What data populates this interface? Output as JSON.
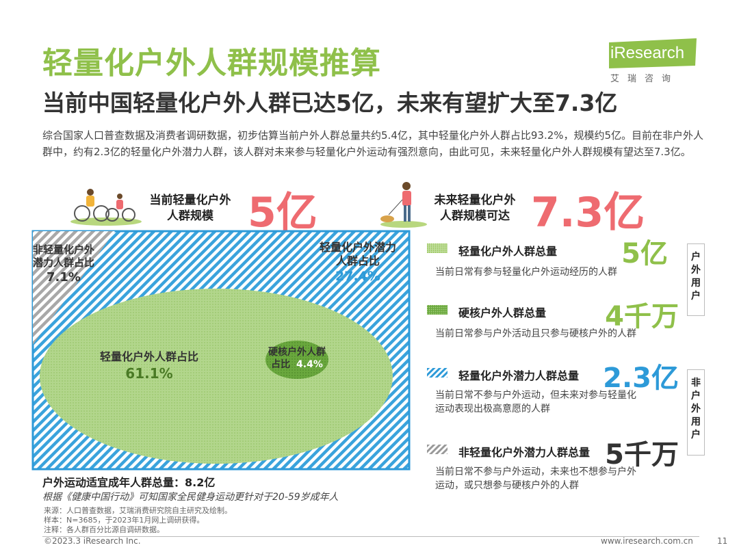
{
  "header": {
    "title": "轻量化户外人群规模推算",
    "subtitle": "当前中国轻量化户外人群已达5亿，未来有望扩大至7.3亿",
    "intro": "综合国家人口普查数据及消费者调研数据，初步估算当前户外人群总量共约5.4亿，其中轻量化户外人群占比93.2%，规模约5亿。目前在非户外人群中，约有2.3亿的轻量化户外潜力人群，该人群对未来参与轻量化户外运动有强烈意向，由此可见，未来轻量化户外人群规模有望达至7.3亿。",
    "logo_text": "iResearch",
    "logo_cn": "艾瑞咨询"
  },
  "stats": {
    "current_label_1": "当前轻量化户外",
    "current_label_2": "人群规模",
    "current_value": "5亿",
    "future_label_1": "未来轻量化户外",
    "future_label_2": "人群规模可达",
    "future_value": "7.3亿"
  },
  "diagram": {
    "non_light_1": "非轻量化户外",
    "non_light_2": "潜力人群占比",
    "non_light_pct": "7.1%",
    "potential_1": "轻量化户外潜力",
    "potential_2": "人群占比",
    "potential_pct": "27.4%",
    "light_label": "轻量化户外人群占比",
    "light_pct": "61.1%",
    "hardcore_1": "硬核户外人群",
    "hardcore_2": "占比",
    "hardcore_pct": "4.4%",
    "total_label": "户外运动适宜成年人群总量：8.2亿",
    "basis_note": "根据《健康中国行动》可知国家全民健身运动更针对于20-59岁成年人"
  },
  "legend": [
    {
      "title": "轻量化户外人群总量",
      "value": "5亿",
      "desc": "当前日常有参与轻量化户外运动经历的人群",
      "color": "#8fc04a"
    },
    {
      "title": "硬核户外人群总量",
      "value": "4千万",
      "desc": "当前日常参与户外活动且只参与硬核户外的人群",
      "color": "#8fc04a"
    },
    {
      "title": "轻量化户外潜力人群总量",
      "value": "2.3亿",
      "desc1": "当前日常不参与户外运动，但未来对参与轻量化",
      "desc2": "运动表现出极高意愿的人群",
      "color": "#2d9ad8"
    },
    {
      "title": "非轻量化户外潜力人群总量",
      "value": "5千万",
      "desc1": "当前日常不参与户外运动，未来也不想参与户外",
      "desc2": "运动，或只想参与硬核户外的人群",
      "color": "#333333"
    }
  ],
  "side_labels": {
    "outdoor": [
      "户",
      "外",
      "用",
      "户"
    ],
    "non_outdoor": [
      "非",
      "户",
      "外",
      "用",
      "户"
    ]
  },
  "footer": {
    "source": "来源：人口普查数据，艾瑞消费研究院自主研究及绘制。",
    "sample": "样本：N=3685，于2023年1月网上调研获得。",
    "note": "注释：各人群百分比源自调研数据。",
    "copyright": "©2023.3 iResearch Inc.",
    "website": "www.iresearch.com.cn",
    "page": "11"
  },
  "colors": {
    "green": "#8fc04a",
    "blue": "#2d9ad8",
    "red": "#ee6b70",
    "gray": "#999999"
  }
}
